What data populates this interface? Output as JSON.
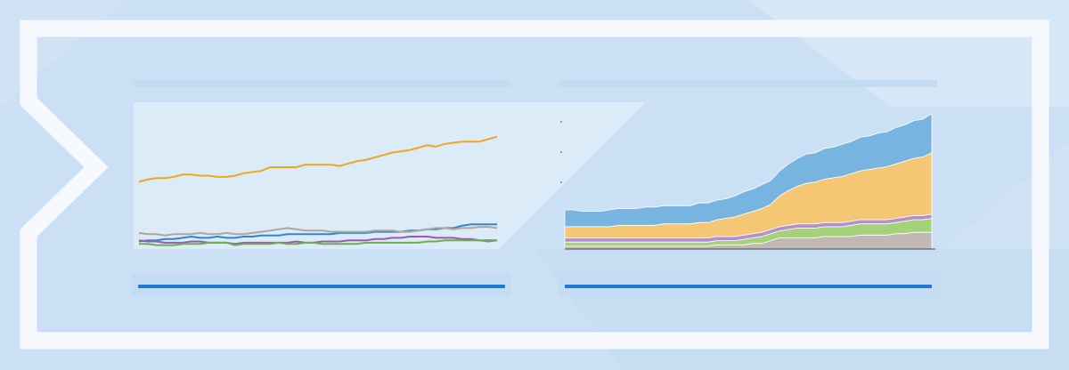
{
  "theme": {
    "accent": "#1f7ad1",
    "frame": "#f6faff",
    "background": "#cfe3f5"
  },
  "chart_data": [
    {
      "type": "line",
      "title": "",
      "xlabel": "",
      "ylabel": "",
      "grid": false,
      "legend": "none",
      "x": [
        1,
        2,
        3,
        4,
        5,
        6,
        7,
        8,
        9,
        10,
        11,
        12,
        13,
        14,
        15,
        16,
        17,
        18,
        19,
        20,
        21,
        22,
        23,
        24,
        25,
        26,
        27,
        28,
        29,
        30,
        31,
        32,
        33,
        34,
        35,
        36,
        37,
        38,
        39,
        40,
        41,
        42
      ],
      "ylim": [
        0,
        100
      ],
      "series": [
        {
          "color": "#f2a51f",
          "values": [
            53,
            55,
            56,
            56,
            57,
            59,
            59,
            58,
            58,
            57,
            57,
            58,
            60,
            61,
            62,
            65,
            65,
            65,
            65,
            67,
            67,
            67,
            67,
            66,
            68,
            70,
            71,
            73,
            75,
            77,
            78,
            79,
            81,
            83,
            82,
            84,
            85,
            86,
            86,
            86,
            88,
            90
          ]
        },
        {
          "color": "#2e86d1",
          "values": [
            4,
            5,
            5,
            6,
            6,
            7,
            8,
            7,
            7,
            8,
            7,
            7,
            8,
            8,
            9,
            9,
            9,
            10,
            10,
            10,
            10,
            10,
            10,
            11,
            11,
            11,
            11,
            12,
            12,
            12,
            12,
            13,
            13,
            14,
            14,
            15,
            15,
            17,
            18,
            18,
            18,
            18
          ]
        },
        {
          "color": "#b3a49c",
          "values": [
            11,
            10,
            10,
            9,
            10,
            10,
            10,
            11,
            10,
            10,
            11,
            10,
            10,
            11,
            12,
            13,
            14,
            15,
            14,
            13,
            13,
            13,
            12,
            12,
            12,
            12,
            12,
            13,
            13,
            13,
            12,
            12,
            13,
            14,
            15,
            15,
            14,
            15,
            15,
            16,
            16,
            15
          ]
        },
        {
          "color": "#9b59b6",
          "values": [
            5,
            4,
            4,
            3,
            3,
            3,
            4,
            4,
            3,
            3,
            3,
            2,
            3,
            3,
            3,
            3,
            3,
            3,
            4,
            3,
            3,
            4,
            4,
            4,
            5,
            5,
            5,
            6,
            6,
            7,
            7,
            8,
            8,
            8,
            7,
            7,
            7,
            6,
            6,
            5,
            5,
            5
          ]
        },
        {
          "color": "#6ab04c",
          "values": [
            2,
            2,
            1,
            1,
            1,
            2,
            2,
            2,
            3,
            3,
            3,
            1,
            2,
            2,
            2,
            2,
            3,
            2,
            2,
            3,
            3,
            2,
            2,
            2,
            2,
            2,
            3,
            3,
            3,
            3,
            3,
            3,
            3,
            4,
            4,
            5,
            5,
            5,
            5,
            5,
            4,
            5
          ]
        }
      ]
    },
    {
      "type": "area",
      "title": "",
      "xlabel": "",
      "ylabel": "",
      "grid": false,
      "legend": "none",
      "stacked": true,
      "x": [
        1,
        2,
        3,
        4,
        5,
        6,
        7,
        8,
        9,
        10,
        11,
        12,
        13,
        14,
        15,
        16,
        17,
        18,
        19,
        20,
        21,
        22,
        23,
        24,
        25,
        26,
        27,
        28,
        29,
        30,
        31,
        32,
        33,
        34,
        35,
        36,
        37,
        38,
        39,
        40,
        41,
        42
      ],
      "ylim": [
        0,
        100
      ],
      "series": [
        {
          "color": "#bfb8b4",
          "values": [
            2,
            2,
            2,
            2,
            2,
            2,
            2,
            2,
            2,
            2,
            2,
            2,
            2,
            2,
            2,
            2,
            2,
            3,
            3,
            3,
            3,
            4,
            4,
            6,
            8,
            8,
            8,
            8,
            8,
            9,
            9,
            9,
            9,
            10,
            10,
            10,
            10,
            11,
            11,
            12,
            12,
            12
          ]
        },
        {
          "color": "#a5d17a",
          "values": [
            3,
            3,
            3,
            3,
            3,
            3,
            3,
            3,
            3,
            3,
            3,
            3,
            3,
            3,
            3,
            3,
            3,
            3,
            3,
            3,
            4,
            4,
            5,
            5,
            5,
            6,
            7,
            7,
            7,
            7,
            7,
            7,
            8,
            8,
            8,
            8,
            8,
            8,
            9,
            9,
            9,
            10
          ]
        },
        {
          "color": "#b48fd0",
          "values": [
            3,
            3,
            3,
            3,
            3,
            3,
            3,
            3,
            3,
            3,
            3,
            3,
            3,
            3,
            3,
            3,
            3,
            3,
            3,
            3,
            3,
            3,
            3,
            3,
            3,
            3,
            3,
            3,
            3,
            3,
            3,
            3,
            3,
            3,
            3,
            3,
            3,
            3,
            3,
            3,
            3,
            3
          ]
        },
        {
          "color": "#f5c775",
          "values": [
            8,
            8,
            8,
            8,
            8,
            8,
            9,
            9,
            9,
            9,
            9,
            10,
            10,
            10,
            10,
            11,
            11,
            12,
            13,
            14,
            15,
            16,
            17,
            18,
            22,
            25,
            27,
            29,
            30,
            31,
            32,
            33,
            34,
            35,
            36,
            37,
            38,
            39,
            40,
            41,
            42,
            44
          ]
        },
        {
          "color": "#77b5e0",
          "values": [
            12,
            12,
            11,
            11,
            11,
            12,
            12,
            12,
            12,
            13,
            13,
            13,
            13,
            13,
            13,
            14,
            14,
            14,
            14,
            15,
            16,
            16,
            17,
            17,
            18,
            19,
            20,
            21,
            21,
            22,
            22,
            23,
            23,
            24,
            24,
            25,
            25,
            26,
            26,
            27,
            27,
            28
          ]
        }
      ]
    }
  ]
}
